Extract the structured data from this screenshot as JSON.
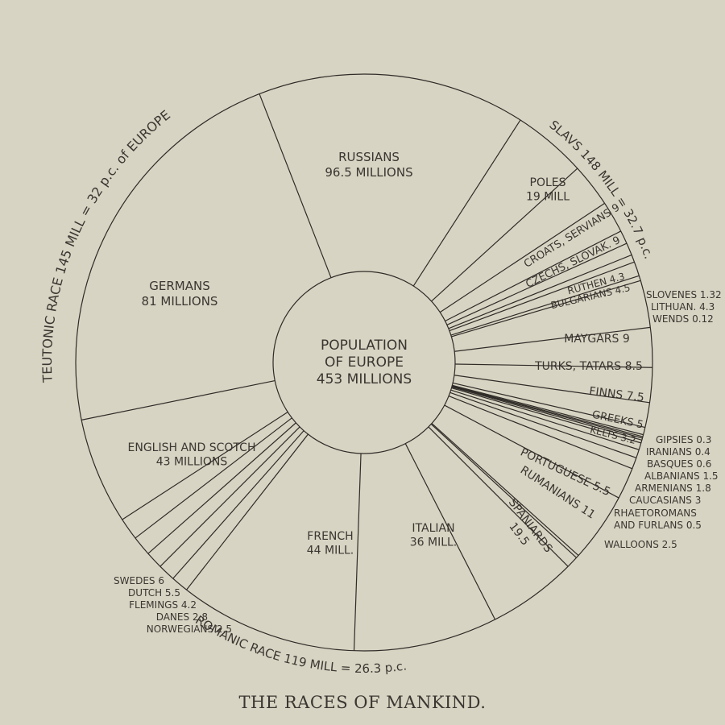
{
  "chart_data": {
    "type": "pie",
    "title": "THE RACES OF MANKIND.",
    "center_label": [
      "POPULATION",
      "OF EUROPE",
      "453 MILLIONS"
    ],
    "total": 453,
    "unit": "millions",
    "groups": [
      {
        "name": "SLAVS",
        "label": "SLAVS  148 MILL = 32.7 p.c.",
        "value": 148,
        "percent": 32.7
      },
      {
        "name": "TEUTONIC RACE",
        "label": "TEUTONIC  RACE 145  MILL = 32 p.c. of EUROPE",
        "value": 145,
        "percent": 32
      },
      {
        "name": "ROMANIC RACE",
        "label": "ROMANIC  RACE 119 MILL = 26.3 p.c.",
        "value": 119,
        "percent": 26.3
      }
    ],
    "slices": [
      {
        "label": [
          "RUSSIANS",
          "96.5 MILLIONS"
        ],
        "value": 96.5,
        "group": "SLAVS"
      },
      {
        "label": [
          "POLES",
          "19 MILL"
        ],
        "value": 19,
        "group": "SLAVS"
      },
      {
        "label": [
          "CROATS, SERVIANS 9"
        ],
        "value": 9,
        "group": "SLAVS"
      },
      {
        "label": [
          "CZECHS, SLOVAK. 9"
        ],
        "value": 9,
        "group": "SLAVS"
      },
      {
        "label": [
          "RUTHEN 4.3"
        ],
        "value": 4.3,
        "group": "SLAVS"
      },
      {
        "label": [
          "BULGARIANS 4.5"
        ],
        "value": 4.5,
        "group": "SLAVS"
      },
      {
        "label": [
          "SLOVENES 1.32"
        ],
        "value": 1.32,
        "group": "SLAVS"
      },
      {
        "label": [
          "LITHUAN. 4.3"
        ],
        "value": 4.3,
        "group": "SLAVS"
      },
      {
        "label": [
          "WENDS 0.12"
        ],
        "value": 0.12,
        "group": "SLAVS"
      },
      {
        "label": [
          "MAYGARS 9"
        ],
        "value": 9,
        "group": "OTHER"
      },
      {
        "label": [
          "TURKS, TATARS 8.5"
        ],
        "value": 8.5,
        "group": "OTHER"
      },
      {
        "label": [
          "FINNS 7.5"
        ],
        "value": 7.5,
        "group": "OTHER"
      },
      {
        "label": [
          "GREEKS 5"
        ],
        "value": 5,
        "group": "OTHER"
      },
      {
        "label": [
          "KELTS 3.2"
        ],
        "value": 3.2,
        "group": "OTHER"
      },
      {
        "label": [
          "GIPSIES 0.3"
        ],
        "value": 0.3,
        "group": "OTHER"
      },
      {
        "label": [
          "IRANIANS 0.4"
        ],
        "value": 0.4,
        "group": "OTHER"
      },
      {
        "label": [
          "BASQUES 0.6"
        ],
        "value": 0.6,
        "group": "OTHER"
      },
      {
        "label": [
          "ALBANIANS 1.5"
        ],
        "value": 1.5,
        "group": "OTHER"
      },
      {
        "label": [
          "ARMENIANS 1.8"
        ],
        "value": 1.8,
        "group": "OTHER"
      },
      {
        "label": [
          "CAUCASIANS 3"
        ],
        "value": 3,
        "group": "OTHER"
      },
      {
        "label": [
          "PORTUGUESE 5.5"
        ],
        "value": 5.5,
        "group": "ROMANIC RACE"
      },
      {
        "label": [
          "RUMANIANS 11"
        ],
        "value": 11,
        "group": "ROMANIC RACE"
      },
      {
        "label": [
          "RHAETOROMANS",
          "AND FURLANS 0.5"
        ],
        "value": 0.5,
        "group": "ROMANIC RACE"
      },
      {
        "label": [
          "WALLOONS 2.5"
        ],
        "value": 2.5,
        "group": "ROMANIC RACE"
      },
      {
        "label": [
          "SPANIARDS",
          "19.5"
        ],
        "value": 19.5,
        "group": "ROMANIC RACE"
      },
      {
        "label": [
          "ITALIAN",
          "36 MILL."
        ],
        "value": 36,
        "group": "ROMANIC RACE"
      },
      {
        "label": [
          "FRENCH",
          "44 MILL."
        ],
        "value": 44,
        "group": "ROMANIC RACE"
      },
      {
        "label": [
          "NORWEGIANS 2.5"
        ],
        "value": 2.5,
        "group": "TEUTONIC RACE"
      },
      {
        "label": [
          "DANES 2.8"
        ],
        "value": 2.8,
        "group": "TEUTONIC RACE"
      },
      {
        "label": [
          "FLEMINGS 4.2"
        ],
        "value": 4.2,
        "group": "TEUTONIC RACE"
      },
      {
        "label": [
          "DUTCH 5.5"
        ],
        "value": 5.5,
        "group": "TEUTONIC RACE"
      },
      {
        "label": [
          "SWEDES 6"
        ],
        "value": 6,
        "group": "TEUTONIC RACE"
      },
      {
        "label": [
          "ENGLISH AND SCOTCH",
          "43 MILLIONS"
        ],
        "value": 43,
        "group": "TEUTONIC RACE"
      },
      {
        "label": [
          "GERMANS",
          "81 MILLIONS"
        ],
        "value": 81,
        "group": "TEUTONIC RACE"
      }
    ],
    "colors": {
      "background": "#d8d4c3",
      "ink": "#2f2b27",
      "text": "#3a3631"
    }
  }
}
